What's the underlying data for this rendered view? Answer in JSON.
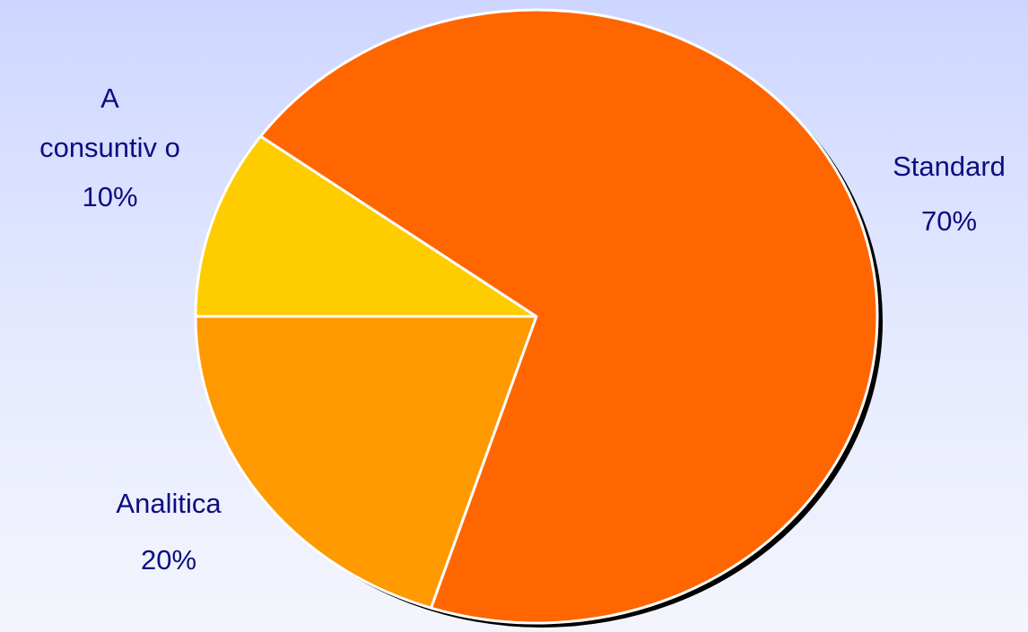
{
  "chart_data": {
    "type": "pie",
    "slices": [
      {
        "label": "Standard",
        "value": 70,
        "value_label": "70%",
        "color": "#ff6600"
      },
      {
        "label": "Analitica",
        "value": 20,
        "value_label": "20%",
        "color": "#ff9900"
      },
      {
        "label_lines": [
          "A",
          "consuntiv o"
        ],
        "value": 10,
        "value_label": "10%",
        "color": "#ffcc00"
      }
    ],
    "title": "",
    "legend": "none",
    "colors": {
      "background_top": "#cdd6ff",
      "background_bottom": "#f4f5fc",
      "label_text": "#0d0d80",
      "slice_border": "#ffffff",
      "shadow": "#000000"
    }
  }
}
